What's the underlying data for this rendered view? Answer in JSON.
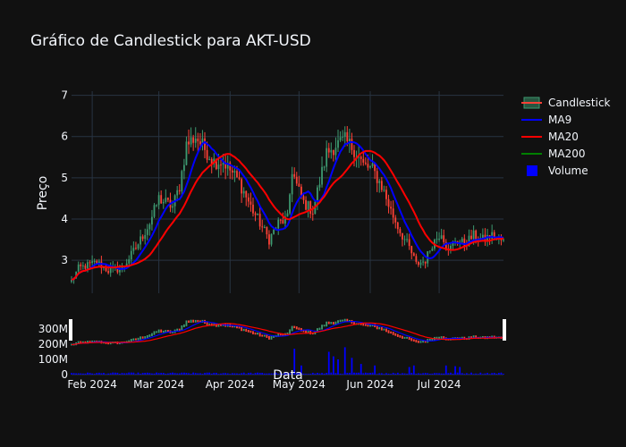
{
  "chart_data": {
    "type": "candlestick",
    "title": "Gráfico de Candlestick para AKT-USD",
    "ylabel": "Preço",
    "xlabel": "Data",
    "ylim": [
      2.2,
      7.1
    ],
    "y_ticks": [
      3,
      4,
      5,
      6,
      7
    ],
    "x_ticks": [
      "Feb 2024",
      "Mar 2024",
      "Apr 2024",
      "May 2024",
      "Jun 2024",
      "Jul 2024"
    ],
    "x_tick_dates": [
      "2024-02-01",
      "2024-03-01",
      "2024-04-01",
      "2024-05-01",
      "2024-06-01",
      "2024-07-01"
    ],
    "date_range": [
      "2024-01-23",
      "2024-07-29"
    ],
    "volume_ticks": [
      "0",
      "100M",
      "200M",
      "300M"
    ],
    "volume_range": [
      0,
      400
    ],
    "legend": [
      "Candlestick",
      "MA9",
      "MA20",
      "MA200",
      "Volume"
    ],
    "colors": {
      "increasing": "#3d9970",
      "decreasing": "#ff4136",
      "ma9": "#0000ff",
      "ma20": "#ff0000",
      "ma200": "#008000",
      "volume": "#0000ff",
      "grid": "#283442"
    },
    "close_anchors": [
      [
        "2024-01-23",
        2.5
      ],
      [
        "2024-01-26",
        2.8
      ],
      [
        "2024-02-03",
        2.95
      ],
      [
        "2024-02-08",
        2.75
      ],
      [
        "2024-02-14",
        2.8
      ],
      [
        "2024-02-20",
        3.3
      ],
      [
        "2024-02-26",
        3.9
      ],
      [
        "2024-03-01",
        4.5
      ],
      [
        "2024-03-04",
        4.4
      ],
      [
        "2024-03-07",
        4.3
      ],
      [
        "2024-03-10",
        4.8
      ],
      [
        "2024-03-13",
        5.8
      ],
      [
        "2024-03-17",
        6.0
      ],
      [
        "2024-03-21",
        5.7
      ],
      [
        "2024-03-25",
        5.4
      ],
      [
        "2024-03-29",
        5.4
      ],
      [
        "2024-04-05",
        4.9
      ],
      [
        "2024-04-10",
        4.3
      ],
      [
        "2024-04-14",
        3.9
      ],
      [
        "2024-04-18",
        3.5
      ],
      [
        "2024-04-22",
        3.9
      ],
      [
        "2024-04-26",
        4.0
      ],
      [
        "2024-04-28",
        5.2
      ],
      [
        "2024-04-30",
        4.8
      ],
      [
        "2024-05-03",
        4.4
      ],
      [
        "2024-05-07",
        4.2
      ],
      [
        "2024-05-10",
        4.9
      ],
      [
        "2024-05-13",
        5.6
      ],
      [
        "2024-05-17",
        5.8
      ],
      [
        "2024-05-21",
        5.9
      ],
      [
        "2024-05-25",
        5.7
      ],
      [
        "2024-05-29",
        5.3
      ],
      [
        "2024-06-02",
        5.2
      ],
      [
        "2024-06-06",
        4.8
      ],
      [
        "2024-06-10",
        4.2
      ],
      [
        "2024-06-14",
        3.7
      ],
      [
        "2024-06-18",
        3.3
      ],
      [
        "2024-06-21",
        2.9
      ],
      [
        "2024-06-25",
        3.0
      ],
      [
        "2024-06-28",
        3.4
      ],
      [
        "2024-07-02",
        3.7
      ],
      [
        "2024-07-05",
        3.2
      ],
      [
        "2024-07-08",
        3.5
      ],
      [
        "2024-07-12",
        3.4
      ],
      [
        "2024-07-16",
        3.6
      ],
      [
        "2024-07-20",
        3.5
      ],
      [
        "2024-07-24",
        3.6
      ],
      [
        "2024-07-29",
        3.45
      ]
    ],
    "volume_spikes": [
      [
        "2024-04-29",
        170
      ],
      [
        "2024-05-02",
        60
      ],
      [
        "2024-05-14",
        150
      ],
      [
        "2024-05-16",
        120
      ],
      [
        "2024-05-18",
        100
      ],
      [
        "2024-05-21",
        180
      ],
      [
        "2024-05-24",
        110
      ],
      [
        "2024-05-28",
        70
      ],
      [
        "2024-06-03",
        60
      ],
      [
        "2024-06-18",
        50
      ],
      [
        "2024-06-20",
        60
      ],
      [
        "2024-07-04",
        60
      ],
      [
        "2024-07-08",
        55
      ],
      [
        "2024-07-10",
        50
      ]
    ]
  }
}
